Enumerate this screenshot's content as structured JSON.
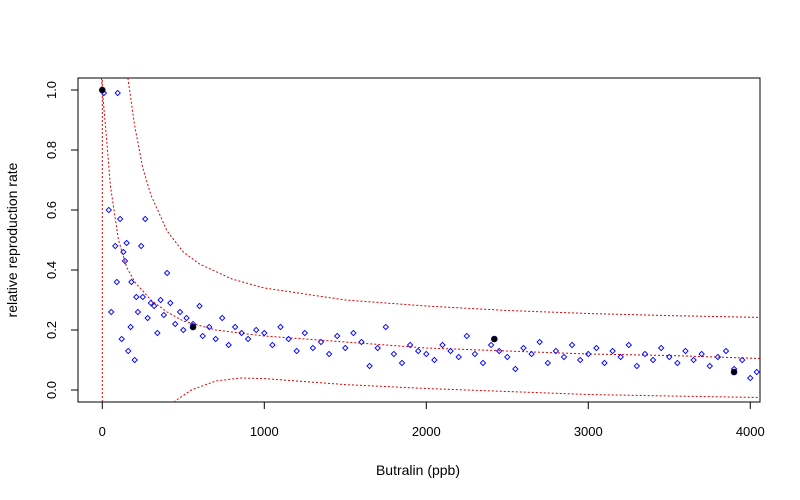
{
  "chart_data": {
    "type": "scatter",
    "title": "",
    "xlabel": "Butralin (ppb)",
    "ylabel": "relative reproduction rate",
    "xlim": [
      -150,
      4060
    ],
    "ylim": [
      -0.04,
      1.04
    ],
    "x_ticks": [
      0,
      1000,
      2000,
      3000,
      4000
    ],
    "x_tick_labels": [
      "0",
      "1000",
      "2000",
      "3000",
      "4000"
    ],
    "y_ticks": [
      0.0,
      0.2,
      0.4,
      0.6,
      0.8,
      1.0
    ],
    "y_tick_labels": [
      "0.0",
      "0.2",
      "0.4",
      "0.6",
      "0.8",
      "1.0"
    ],
    "grid": false,
    "legend": "none",
    "colors": {
      "observations": "#0000ff",
      "curves": "#dd0000",
      "means": "#000000"
    },
    "series": [
      {
        "marker": "open-diamond",
        "points": [
          [
            10,
            0.99
          ],
          [
            40,
            0.6
          ],
          [
            55,
            0.26
          ],
          [
            80,
            0.48
          ],
          [
            90,
            0.36
          ],
          [
            95,
            0.99
          ],
          [
            110,
            0.57
          ],
          [
            120,
            0.17
          ],
          [
            130,
            0.46
          ],
          [
            140,
            0.43
          ],
          [
            150,
            0.49
          ],
          [
            160,
            0.13
          ],
          [
            175,
            0.21
          ],
          [
            180,
            0.36
          ],
          [
            200,
            0.1
          ],
          [
            210,
            0.31
          ],
          [
            220,
            0.26
          ],
          [
            240,
            0.48
          ],
          [
            250,
            0.31
          ],
          [
            265,
            0.57
          ],
          [
            280,
            0.24
          ],
          [
            300,
            0.29
          ],
          [
            320,
            0.28
          ],
          [
            340,
            0.19
          ],
          [
            360,
            0.3
          ],
          [
            380,
            0.25
          ],
          [
            400,
            0.39
          ],
          [
            420,
            0.29
          ],
          [
            450,
            0.22
          ],
          [
            480,
            0.26
          ],
          [
            500,
            0.2
          ],
          [
            520,
            0.24
          ],
          [
            560,
            0.22
          ],
          [
            600,
            0.28
          ],
          [
            620,
            0.18
          ],
          [
            660,
            0.21
          ],
          [
            700,
            0.17
          ],
          [
            740,
            0.24
          ],
          [
            780,
            0.15
          ],
          [
            820,
            0.21
          ],
          [
            860,
            0.19
          ],
          [
            900,
            0.17
          ],
          [
            950,
            0.2
          ],
          [
            1000,
            0.19
          ],
          [
            1050,
            0.15
          ],
          [
            1100,
            0.21
          ],
          [
            1150,
            0.17
          ],
          [
            1200,
            0.13
          ],
          [
            1250,
            0.19
          ],
          [
            1300,
            0.14
          ],
          [
            1350,
            0.16
          ],
          [
            1400,
            0.12
          ],
          [
            1450,
            0.18
          ],
          [
            1500,
            0.14
          ],
          [
            1550,
            0.19
          ],
          [
            1600,
            0.16
          ],
          [
            1650,
            0.08
          ],
          [
            1700,
            0.14
          ],
          [
            1750,
            0.21
          ],
          [
            1800,
            0.12
          ],
          [
            1850,
            0.09
          ],
          [
            1900,
            0.15
          ],
          [
            1950,
            0.13
          ],
          [
            2000,
            0.12
          ],
          [
            2050,
            0.1
          ],
          [
            2100,
            0.15
          ],
          [
            2150,
            0.13
          ],
          [
            2200,
            0.11
          ],
          [
            2250,
            0.18
          ],
          [
            2300,
            0.12
          ],
          [
            2350,
            0.09
          ],
          [
            2400,
            0.15
          ],
          [
            2450,
            0.13
          ],
          [
            2500,
            0.11
          ],
          [
            2550,
            0.07
          ],
          [
            2600,
            0.14
          ],
          [
            2650,
            0.12
          ],
          [
            2700,
            0.16
          ],
          [
            2750,
            0.09
          ],
          [
            2800,
            0.13
          ],
          [
            2850,
            0.11
          ],
          [
            2900,
            0.15
          ],
          [
            2950,
            0.1
          ],
          [
            3000,
            0.12
          ],
          [
            3050,
            0.14
          ],
          [
            3100,
            0.09
          ],
          [
            3150,
            0.13
          ],
          [
            3200,
            0.11
          ],
          [
            3250,
            0.15
          ],
          [
            3300,
            0.08
          ],
          [
            3350,
            0.12
          ],
          [
            3400,
            0.1
          ],
          [
            3450,
            0.14
          ],
          [
            3500,
            0.11
          ],
          [
            3550,
            0.09
          ],
          [
            3600,
            0.13
          ],
          [
            3650,
            0.1
          ],
          [
            3700,
            0.12
          ],
          [
            3750,
            0.08
          ],
          [
            3800,
            0.11
          ],
          [
            3850,
            0.13
          ],
          [
            3900,
            0.07
          ],
          [
            3950,
            0.1
          ],
          [
            4000,
            0.04
          ],
          [
            4040,
            0.06
          ]
        ]
      },
      {
        "marker": "filled-circle",
        "points": [
          [
            0,
            1.0
          ],
          [
            560,
            0.21
          ],
          [
            2420,
            0.17
          ],
          [
            3900,
            0.06
          ]
        ]
      },
      {
        "marker": "dashed-line",
        "points": [
          [
            -5,
            1.04
          ],
          [
            0,
            1.0
          ],
          [
            20,
            0.88
          ],
          [
            50,
            0.68
          ],
          [
            100,
            0.5
          ],
          [
            150,
            0.41
          ],
          [
            200,
            0.36
          ],
          [
            300,
            0.3
          ],
          [
            400,
            0.26
          ],
          [
            500,
            0.23
          ],
          [
            700,
            0.2
          ],
          [
            1000,
            0.18
          ],
          [
            1500,
            0.16
          ],
          [
            2000,
            0.14
          ],
          [
            2500,
            0.13
          ],
          [
            3000,
            0.12
          ],
          [
            3500,
            0.115
          ],
          [
            4060,
            0.105
          ]
        ]
      },
      {
        "marker": "dashed-line",
        "points": [
          [
            158,
            1.04
          ],
          [
            200,
            0.88
          ],
          [
            250,
            0.74
          ],
          [
            300,
            0.65
          ],
          [
            400,
            0.53
          ],
          [
            500,
            0.46
          ],
          [
            600,
            0.42
          ],
          [
            800,
            0.37
          ],
          [
            1000,
            0.34
          ],
          [
            1500,
            0.3
          ],
          [
            2000,
            0.28
          ],
          [
            2500,
            0.265
          ],
          [
            3000,
            0.255
          ],
          [
            3500,
            0.248
          ],
          [
            4060,
            0.242
          ]
        ]
      },
      {
        "marker": "dashed-line",
        "points": [
          [
            440,
            -0.04
          ],
          [
            550,
            0.0
          ],
          [
            700,
            0.03
          ],
          [
            850,
            0.04
          ],
          [
            1000,
            0.038
          ],
          [
            1200,
            0.03
          ],
          [
            1500,
            0.018
          ],
          [
            2000,
            0.005
          ],
          [
            2500,
            -0.005
          ],
          [
            3000,
            -0.015
          ],
          [
            3500,
            -0.02
          ],
          [
            4060,
            -0.025
          ]
        ]
      },
      {
        "marker": "dashed-line",
        "points": [
          [
            0,
            -0.04
          ],
          [
            0,
            1.04
          ]
        ]
      }
    ]
  }
}
